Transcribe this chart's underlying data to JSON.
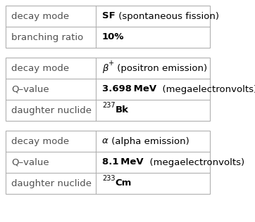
{
  "tables": [
    {
      "rows": [
        {
          "label": "decay mode",
          "value_parts": [
            {
              "text": "SF",
              "bold": true,
              "italic": false,
              "sup": false
            },
            {
              "text": " (spontaneous fission)",
              "bold": false,
              "italic": false,
              "sup": false
            }
          ]
        },
        {
          "label": "branching ratio",
          "value_parts": [
            {
              "text": "10%",
              "bold": true,
              "italic": false,
              "sup": false
            }
          ]
        }
      ]
    },
    {
      "rows": [
        {
          "label": "decay mode",
          "value_parts": [
            {
              "text": "β",
              "bold": false,
              "italic": true,
              "sup": false
            },
            {
              "text": "+",
              "bold": false,
              "italic": true,
              "sup": true
            },
            {
              "text": " (positron emission)",
              "bold": false,
              "italic": false,
              "sup": false
            }
          ]
        },
        {
          "label": "Q–value",
          "value_parts": [
            {
              "text": "3.698 MeV",
              "bold": true,
              "italic": false,
              "sup": false
            },
            {
              "text": "  (megaelectronvolts)",
              "bold": false,
              "italic": false,
              "sup": false
            }
          ]
        },
        {
          "label": "daughter nuclide",
          "value_parts": [
            {
              "text": "237",
              "bold": false,
              "italic": false,
              "sup": true
            },
            {
              "text": "Bk",
              "bold": true,
              "italic": false,
              "sup": false
            }
          ]
        }
      ]
    },
    {
      "rows": [
        {
          "label": "decay mode",
          "value_parts": [
            {
              "text": "α",
              "bold": false,
              "italic": true,
              "sup": false
            },
            {
              "text": " (alpha emission)",
              "bold": false,
              "italic": false,
              "sup": false
            }
          ]
        },
        {
          "label": "Q–value",
          "value_parts": [
            {
              "text": "8.1 MeV",
              "bold": true,
              "italic": false,
              "sup": false
            },
            {
              "text": "  (megaelectronvolts)",
              "bold": false,
              "italic": false,
              "sup": false
            }
          ]
        },
        {
          "label": "daughter nuclide",
          "value_parts": [
            {
              "text": "233",
              "bold": false,
              "italic": false,
              "sup": true
            },
            {
              "text": "Cm",
              "bold": true,
              "italic": false,
              "sup": false
            }
          ]
        }
      ]
    }
  ],
  "bg_color": "#ffffff",
  "border_color": "#b0b0b0",
  "label_color": "#505050",
  "value_color": "#000000",
  "fig_width": 3.62,
  "fig_height": 3.16,
  "dpi": 100
}
